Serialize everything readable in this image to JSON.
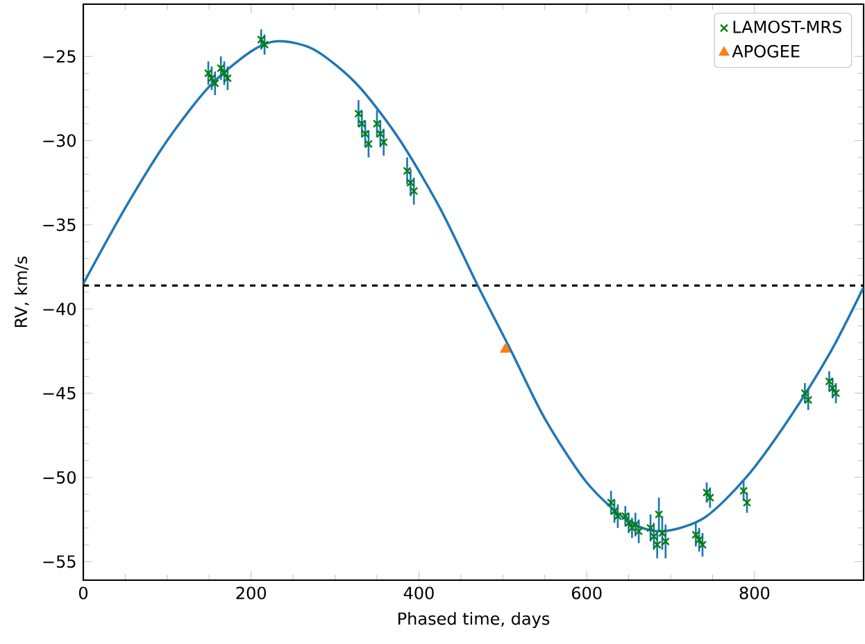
{
  "chart_data": {
    "type": "scatter",
    "xlabel": "Phased time, days",
    "ylabel": "RV, km/s",
    "xlim": [
      0,
      930
    ],
    "ylim": [
      -56.1,
      -21.9
    ],
    "xticks": [
      0,
      200,
      400,
      600,
      800
    ],
    "yticks": [
      {
        "value": -25,
        "label": "−25"
      },
      {
        "value": -30,
        "label": "−30"
      },
      {
        "value": -35,
        "label": "−35"
      },
      {
        "value": -40,
        "label": "−40"
      },
      {
        "value": -45,
        "label": "−45"
      },
      {
        "value": -50,
        "label": "−50"
      },
      {
        "value": -55,
        "label": "−55"
      }
    ],
    "legend": "top right",
    "grid": false,
    "ref_lines": [
      {
        "axis": "y",
        "value": -38.6,
        "color": "#000000",
        "line_style": "dashed"
      }
    ],
    "series": [
      {
        "type": "line",
        "color": "#1f77b4",
        "x": [
          0,
          50,
          100,
          150,
          200,
          232,
          275,
          325,
          375,
          425,
          470,
          510,
          550,
          600,
          650,
          690,
          740,
          790,
          840,
          890,
          930
        ],
        "values": [
          -38.5,
          -34.0,
          -30.0,
          -26.8,
          -24.7,
          -24.1,
          -24.6,
          -26.6,
          -29.8,
          -34.0,
          -38.6,
          -42.5,
          -46.5,
          -50.3,
          -52.6,
          -53.2,
          -52.4,
          -50.0,
          -46.6,
          -42.6,
          -38.7
        ]
      },
      {
        "name": "LAMOST-MRS",
        "color": "#008000",
        "marker": "cross",
        "x": [
          149,
          153,
          157,
          164,
          168,
          172,
          212,
          216,
          328,
          332,
          336,
          340,
          350,
          354,
          358,
          386,
          390,
          394,
          629,
          633,
          637,
          646,
          650,
          654,
          658,
          662,
          676,
          680,
          684,
          686,
          690,
          694,
          730,
          734,
          738,
          743,
          747,
          787,
          791,
          860,
          864,
          889,
          893,
          897
        ],
        "values": [
          -26.0,
          -26.3,
          -26.6,
          -25.7,
          -26.0,
          -26.3,
          -24.0,
          -24.3,
          -28.4,
          -29.0,
          -29.6,
          -30.2,
          -29.0,
          -29.6,
          -30.1,
          -31.8,
          -32.5,
          -33.0,
          -51.5,
          -52.0,
          -52.3,
          -52.3,
          -52.7,
          -53.0,
          -52.8,
          -53.2,
          -53.0,
          -53.5,
          -54.0,
          -52.2,
          -53.3,
          -53.8,
          -53.4,
          -53.7,
          -54.0,
          -50.9,
          -51.2,
          -50.8,
          -51.5,
          -45.0,
          -45.4,
          -44.3,
          -44.7,
          -45.0
        ],
        "errors": [
          0.7,
          0.7,
          0.7,
          0.7,
          0.7,
          0.7,
          0.6,
          0.6,
          0.8,
          0.8,
          0.8,
          0.8,
          0.8,
          0.8,
          0.8,
          0.8,
          0.8,
          0.8,
          0.7,
          0.7,
          0.7,
          0.6,
          0.6,
          0.6,
          0.7,
          0.7,
          0.8,
          0.8,
          0.8,
          1.0,
          1.0,
          1.0,
          0.7,
          0.7,
          0.7,
          0.6,
          0.6,
          0.6,
          0.6,
          0.6,
          0.6,
          0.6,
          0.6,
          0.6
        ]
      },
      {
        "name": "APOGEE",
        "color": "#ff7f0e",
        "marker": "triangle",
        "x": [
          503
        ],
        "values": [
          -42.4
        ]
      }
    ]
  }
}
